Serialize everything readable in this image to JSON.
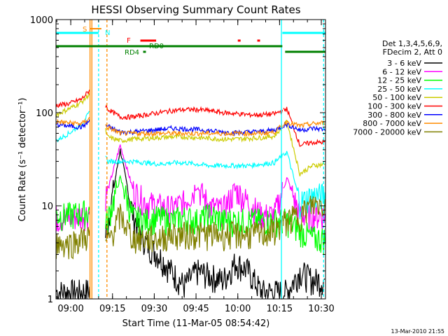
{
  "chart_data": {
    "type": "line",
    "title": "HESSI Observing Summary Count Rates",
    "xlabel": "Start Time (11-Mar-05 08:54:42)",
    "ylabel": "Count Rate (s⁻¹ detector⁻¹)",
    "y_scale": "log",
    "ylim": [
      1,
      1000
    ],
    "xlim": [
      "08:54:42",
      "10:31:30"
    ],
    "x_ticks": [
      "09:00",
      "09:15",
      "09:30",
      "09:45",
      "10:00",
      "10:15",
      "10:30"
    ],
    "y_ticks": [
      "1",
      "10",
      "100",
      "1000"
    ],
    "timestamp": "13-Mar-2010 21:55",
    "legend_header": [
      "Det 1,3,4,5,6,9,",
      "FDecim 2, Att 0"
    ],
    "series": [
      {
        "name": "3 - 6 keV",
        "color": "#000000",
        "level": [
          1.2,
          1.2,
          1.2,
          1.3,
          6,
          40,
          8,
          4,
          3,
          2,
          1.4,
          2,
          1.8,
          1.6,
          2.5,
          2,
          1.2,
          1.2,
          1.2,
          2,
          1.6,
          1.6
        ]
      },
      {
        "name": "6 - 12 keV",
        "color": "#ff00ff",
        "level": [
          7.5,
          7.5,
          8,
          9,
          14,
          45,
          15,
          11,
          10,
          9.5,
          11,
          16,
          10,
          9,
          15,
          11,
          8,
          8,
          20,
          8,
          8,
          8
        ]
      },
      {
        "name": "12 - 25 keV",
        "color": "#00ff00",
        "level": [
          8,
          8,
          8.5,
          9,
          7,
          20,
          7.5,
          7,
          7.5,
          7,
          7.5,
          7,
          8,
          7,
          7,
          7,
          7,
          7,
          7,
          5.5,
          4.5,
          4.5
        ]
      },
      {
        "name": "25 - 50 keV",
        "color": "#00ffff",
        "level": [
          50,
          60,
          75,
          120,
          30,
          30,
          30,
          29,
          28,
          29,
          29,
          28,
          27,
          27,
          27,
          27,
          28,
          29,
          38,
          11,
          13,
          13
        ]
      },
      {
        "name": "50 - 100 keV",
        "color": "#cccc00",
        "level": [
          95,
          110,
          130,
          180,
          55,
          50,
          52,
          53,
          54,
          55,
          55,
          54,
          53,
          52,
          52,
          53,
          54,
          56,
          80,
          22,
          27,
          28
        ]
      },
      {
        "name": "100 - 300 keV",
        "color": "#ff0000",
        "level": [
          120,
          125,
          140,
          200,
          110,
          90,
          90,
          95,
          100,
          105,
          108,
          108,
          105,
          100,
          98,
          95,
          95,
          97,
          110,
          45,
          48,
          48
        ]
      },
      {
        "name": "300 - 800 keV",
        "color": "#0000ff",
        "level": [
          75,
          72,
          70,
          90,
          72,
          62,
          62,
          64,
          66,
          68,
          67,
          66,
          64,
          62,
          61,
          62,
          63,
          65,
          75,
          65,
          68,
          66
        ]
      },
      {
        "name": "800 - 7000 keV",
        "color": "#ff8c00",
        "level": [
          80,
          78,
          76,
          95,
          70,
          60,
          60,
          60,
          60,
          60,
          60,
          60,
          60,
          60,
          60,
          60,
          60,
          62,
          80,
          72,
          76,
          78
        ]
      },
      {
        "name": "7000 - 20000 keV",
        "color": "#808000",
        "level": [
          4,
          4,
          4.5,
          5,
          4,
          8,
          4.5,
          4.5,
          4.5,
          5,
          5,
          5,
          5,
          5,
          5,
          5,
          5,
          5.5,
          7,
          8,
          10.5,
          10.5
        ]
      }
    ],
    "flag_labels": [
      "S",
      "N",
      "F",
      "RD0",
      "RD4"
    ]
  }
}
